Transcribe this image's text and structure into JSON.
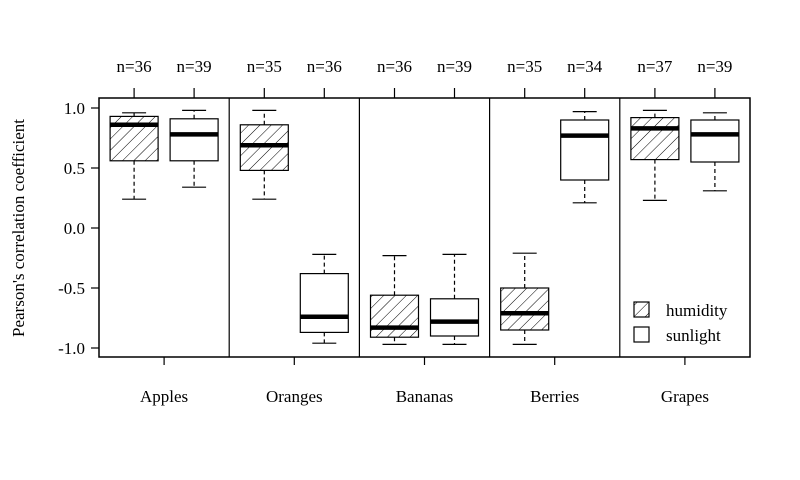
{
  "chart_data": {
    "type": "box",
    "ylabel": "Pearson's correlation coefficient",
    "ylim": [
      -1.1,
      1.1
    ],
    "yticks": [
      {
        "value": 1.0,
        "label": "1.0"
      },
      {
        "value": 0.5,
        "label": "0.5"
      },
      {
        "value": 0.0,
        "label": "0.0"
      },
      {
        "value": -0.5,
        "label": "-0.5"
      },
      {
        "value": -1.0,
        "label": "-1.0"
      }
    ],
    "categories": [
      "Apples",
      "Oranges",
      "Bananas",
      "Berries",
      "Grapes"
    ],
    "series": [
      {
        "name": "humidity",
        "fill": "hatched",
        "boxes": [
          {
            "n_label": "n=36",
            "whisker_low": 0.24,
            "q1": 0.56,
            "median": 0.86,
            "q3": 0.93,
            "whisker_high": 0.96
          },
          {
            "n_label": "n=35",
            "whisker_low": 0.24,
            "q1": 0.48,
            "median": 0.69,
            "q3": 0.86,
            "whisker_high": 0.98
          },
          {
            "n_label": "n=36",
            "whisker_low": -0.97,
            "q1": -0.91,
            "median": -0.83,
            "q3": -0.56,
            "whisker_high": -0.23
          },
          {
            "n_label": "n=35",
            "whisker_low": -0.97,
            "q1": -0.85,
            "median": -0.71,
            "q3": -0.5,
            "whisker_high": -0.21
          },
          {
            "n_label": "n=37",
            "whisker_low": 0.23,
            "q1": 0.57,
            "median": 0.83,
            "q3": 0.92,
            "whisker_high": 0.98
          }
        ]
      },
      {
        "name": "sunlight",
        "fill": "white",
        "boxes": [
          {
            "n_label": "n=39",
            "whisker_low": 0.34,
            "q1": 0.56,
            "median": 0.78,
            "q3": 0.91,
            "whisker_high": 0.98
          },
          {
            "n_label": "n=36",
            "whisker_low": -0.96,
            "q1": -0.87,
            "median": -0.74,
            "q3": -0.38,
            "whisker_high": -0.22
          },
          {
            "n_label": "n=39",
            "whisker_low": -0.97,
            "q1": -0.9,
            "median": -0.78,
            "q3": -0.59,
            "whisker_high": -0.22
          },
          {
            "n_label": "n=34",
            "whisker_low": 0.21,
            "q1": 0.4,
            "median": 0.77,
            "q3": 0.9,
            "whisker_high": 0.97
          },
          {
            "n_label": "n=39",
            "whisker_low": 0.31,
            "q1": 0.55,
            "median": 0.78,
            "q3": 0.9,
            "whisker_high": 0.96
          }
        ]
      }
    ],
    "legend": {
      "placement": "bottom-right",
      "entries": [
        {
          "label": "humidity",
          "fill": "hatched"
        },
        {
          "label": "sunlight",
          "fill": "white"
        }
      ]
    },
    "grid": false
  }
}
